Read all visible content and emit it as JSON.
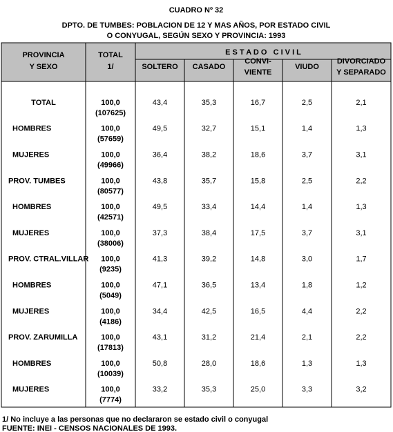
{
  "header": {
    "title": "CUADRO Nº 32",
    "subtitle_lines": [
      "DPTO. DE TUMBES: POBLACION DE 12 Y MAS AÑOS, POR ESTADO CIVIL",
      "O CONYUGAL, SEGÚN SEXO Y PROVINCIA: 1993"
    ]
  },
  "table": {
    "columns": {
      "province": [
        "PROVINCIA",
        "Y SEXO"
      ],
      "total": [
        "TOTAL",
        "1/"
      ],
      "group": "E S T A D O   C I V I L",
      "states": [
        [
          "SOLTERO"
        ],
        [
          "CASADO"
        ],
        [
          "CONVI-",
          "VIENTE"
        ],
        [
          "VIUDO"
        ],
        [
          "DIVORCIADO",
          "Y SEPARADO"
        ]
      ]
    },
    "rows": [
      {
        "label": "TOTAL",
        "total": "100,0",
        "count": "(107625)",
        "values": [
          "43,4",
          "35,3",
          "16,7",
          "2,5",
          "2,1"
        ]
      },
      {
        "label": "HOMBRES",
        "total": "100,0",
        "count": "(57659)",
        "values": [
          "49,5",
          "32,7",
          "15,1",
          "1,4",
          "1,3"
        ]
      },
      {
        "label": "MUJERES",
        "total": "100,0",
        "count": "(49966)",
        "values": [
          "36,4",
          "38,2",
          "18,6",
          "3,7",
          "3,1"
        ]
      },
      {
        "label": "PROV. TUMBES",
        "total": "100,0",
        "count": "(80577)",
        "values": [
          "43,8",
          "35,7",
          "15,8",
          "2,5",
          "2,2"
        ]
      },
      {
        "label": "HOMBRES",
        "total": "100,0",
        "count": "(42571)",
        "values": [
          "49,5",
          "33,4",
          "14,4",
          "1,4",
          "1,3"
        ]
      },
      {
        "label": "MUJERES",
        "total": "100,0",
        "count": "(38006)",
        "values": [
          "37,3",
          "38,4",
          "17,5",
          "3,7",
          "3,1"
        ]
      },
      {
        "label": "PROV. CTRAL.VILLAR",
        "total": "100,0",
        "count": "(9235)",
        "values": [
          "41,3",
          "39,2",
          "14,8",
          "3,0",
          "1,7"
        ]
      },
      {
        "label": "HOMBRES",
        "total": "100,0",
        "count": "(5049)",
        "values": [
          "47,1",
          "36,5",
          "13,4",
          "1,8",
          "1,2"
        ]
      },
      {
        "label": "MUJERES",
        "total": "100,0",
        "count": "(4186)",
        "values": [
          "34,4",
          "42,5",
          "16,5",
          "4,4",
          "2,2"
        ]
      },
      {
        "label": "PROV. ZARUMILLA",
        "total": "100,0",
        "count": "(17813)",
        "values": [
          "43,1",
          "31,2",
          "21,4",
          "2,1",
          "2,2"
        ]
      },
      {
        "label": "HOMBRES",
        "total": "100,0",
        "count": "(10039)",
        "values": [
          "50,8",
          "28,0",
          "18,6",
          "1,3",
          "1,3"
        ]
      },
      {
        "label": "MUJERES",
        "total": "100,0",
        "count": "(7774)",
        "values": [
          "33,2",
          "35,3",
          "25,0",
          "3,3",
          "3,2"
        ]
      }
    ]
  },
  "footer": {
    "note": "1/ No incluye a las personas que no declararon se estado civil o conyugal",
    "source": "FUENTE: INEI - CENSOS NACIONALES DE 1993."
  }
}
